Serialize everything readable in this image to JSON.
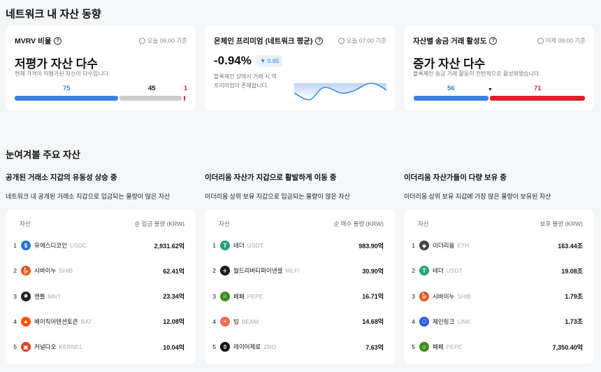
{
  "section1": {
    "title": "네트워크 내 자산 동향",
    "mvrv": {
      "title": "MVRV 비율",
      "time": "오늘 06:00 기준",
      "headline": "저평가 자산 다수",
      "desc": "현재 가격이 저평가된 자산이 다수입니다.",
      "blue": "75",
      "gray": "45",
      "red": "1"
    },
    "premium": {
      "title": "온체인 프리미엄 (네트워크 평균)",
      "time": "오늘 07:00 기준",
      "value": "-0.94%",
      "change": "▼ 0.85",
      "desc1": "블록체인 상에서 거래 시 역",
      "desc2": "프리미엄이 존재합니다."
    },
    "activity": {
      "title": "자산별 송금 거래 활성도",
      "time": "어제 09:00 기준",
      "headline": "증가 자산 다수",
      "desc": "블록체인 송금 거래 활동이 전반적으로 활성화됐습니다.",
      "blue": "56",
      "red": "71"
    }
  },
  "colors": {
    "blue": "#3a82e0",
    "red": "#e0202a",
    "gray": "#cccccc"
  },
  "section2": {
    "title": "눈여겨볼 주요 자산",
    "lists": [
      {
        "title": "공개된 거래소 지갑의 유동성 상승 중",
        "desc": "네트워크 내 공개된 거래소 지갑으로 입금되는 물량이 많은 자산",
        "col1": "자산",
        "col2": "순 입금 물량 (KRW)",
        "rows": [
          {
            "rank": "1",
            "name": "유에스디코인",
            "sym": "USDC",
            "value": "2,931.62억",
            "icon": "usdc-icon",
            "color": "#2775ca",
            "glyph": "$"
          },
          {
            "rank": "2",
            "name": "시바이누",
            "sym": "SHIB",
            "value": "62.41억",
            "icon": "shib-icon",
            "color": "#e8541e",
            "glyph": "🐕"
          },
          {
            "rank": "3",
            "name": "맨틀",
            "sym": "MNT",
            "value": "23.34억",
            "icon": "mnt-icon",
            "color": "#222",
            "glyph": "✺"
          },
          {
            "rank": "4",
            "name": "베이직어텐션토큰",
            "sym": "BAT",
            "value": "12.08억",
            "icon": "bat-icon",
            "color": "#ff5000",
            "glyph": "▲"
          },
          {
            "rank": "5",
            "name": "커널다오",
            "sym": "KERNEL",
            "value": "10.04억",
            "icon": "kernel-icon",
            "color": "#d9452b",
            "glyph": "▣"
          }
        ]
      },
      {
        "title": "이더리움 자산가 지갑으로 활발하게 이동 중",
        "desc": "이더리움 상위 보유 지갑으로 입금되는 물량이 많은 자산",
        "col1": "자산",
        "col2": "순 매수 물량 (KRW)",
        "rows": [
          {
            "rank": "1",
            "name": "테더",
            "sym": "USDT",
            "value": "983.90억",
            "icon": "usdt-icon",
            "color": "#26a17b",
            "glyph": "T"
          },
          {
            "rank": "2",
            "name": "월드리버티파이낸셜",
            "sym": "WLFI",
            "value": "30.90억",
            "icon": "wlfi-icon",
            "color": "#1a1a1a",
            "glyph": "✈"
          },
          {
            "rank": "3",
            "name": "페페",
            "sym": "PEPE",
            "value": "16.71억",
            "icon": "pepe-icon",
            "color": "#3d8b1e",
            "glyph": "☺"
          },
          {
            "rank": "4",
            "name": "빔",
            "sym": "BEAM",
            "value": "14.68억",
            "icon": "beam-icon",
            "color": "#f06a4f",
            "glyph": "≡"
          },
          {
            "rank": "5",
            "name": "레이어제로",
            "sym": "ZRO",
            "value": "7.63억",
            "icon": "zro-icon",
            "color": "#111",
            "glyph": "0"
          }
        ]
      },
      {
        "title": "이더리움 자산가들이 다량 보유 중",
        "desc": "이더리움 상위 보유 지갑에 가장 많은 물량이 보유된 자산",
        "col1": "자산",
        "col2": "보유 물량 (KRW)",
        "rows": [
          {
            "rank": "1",
            "name": "이더리움",
            "sym": "ETH",
            "value": "163.44조",
            "icon": "eth-icon",
            "color": "#444",
            "glyph": "◆"
          },
          {
            "rank": "2",
            "name": "테더",
            "sym": "USDT",
            "value": "19.08조",
            "icon": "usdt-icon",
            "color": "#26a17b",
            "glyph": "T"
          },
          {
            "rank": "3",
            "name": "시바이누",
            "sym": "SHIB",
            "value": "1.79조",
            "icon": "shib-icon",
            "color": "#e8541e",
            "glyph": "🐕"
          },
          {
            "rank": "4",
            "name": "체인링크",
            "sym": "LINK",
            "value": "1.73조",
            "icon": "link-icon",
            "color": "#2a5ada",
            "glyph": "⬡"
          },
          {
            "rank": "5",
            "name": "페페",
            "sym": "PEPE",
            "value": "7,350.40억",
            "icon": "pepe-icon",
            "color": "#3d8b1e",
            "glyph": "☺"
          }
        ]
      }
    ]
  }
}
